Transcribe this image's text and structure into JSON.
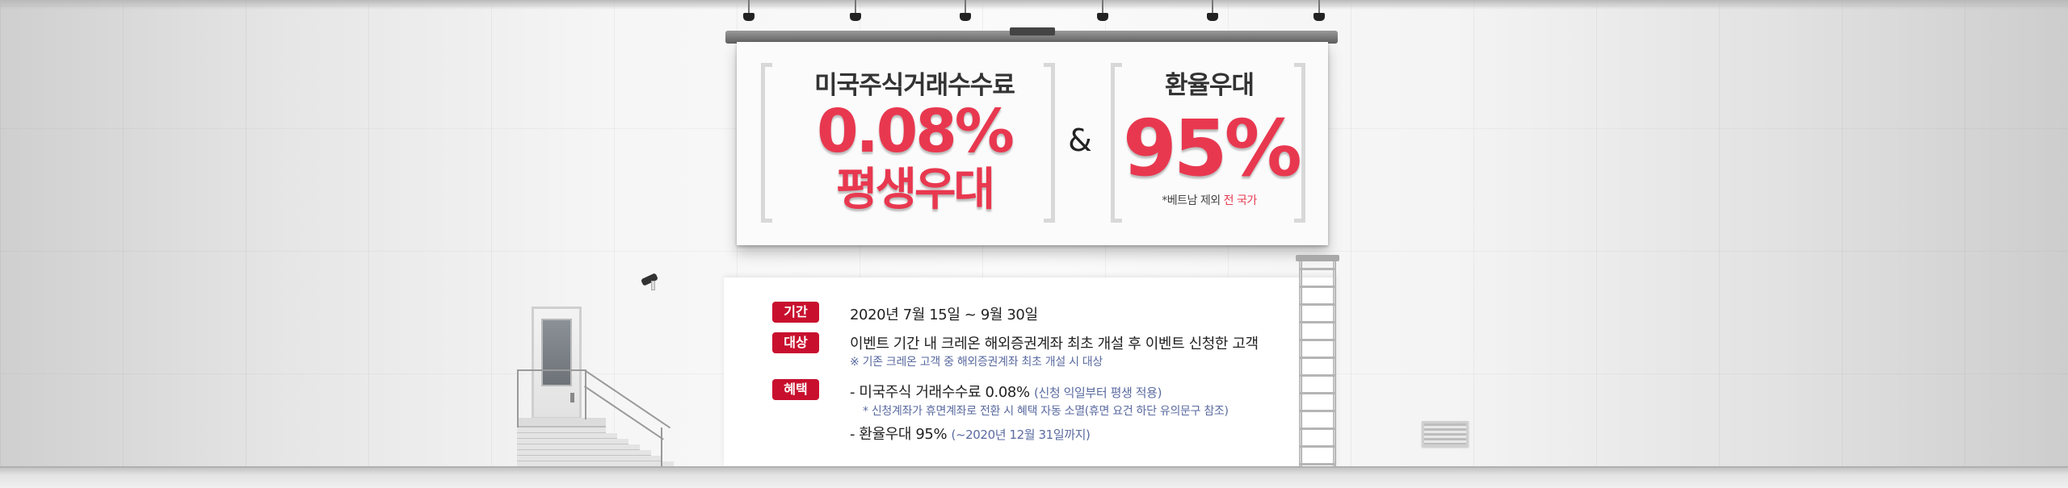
{
  "billboard": {
    "title_left": "미국주식거래수수료",
    "rate": "0.08%",
    "lifetime": "평생우대",
    "ampersand": "&",
    "title_right": "환율우대",
    "fx_rate": "95%",
    "footnote_prefix": "*베트남 제외 ",
    "footnote_highlight": "전 국가"
  },
  "info": {
    "period": {
      "label": "기간",
      "text": "2020년 7월 15일 ~ 9월 30일"
    },
    "target": {
      "label": "대상",
      "text": "이벤트 기간 내 크레온 해외증권계좌 최초 개설 후 이벤트 신청한 고객",
      "note": "※ 기존 크레온 고객 중 해외증권계좌 최초 개설 시 대상"
    },
    "benefit": {
      "label": "혜택",
      "line1_main": "- 미국주식 거래수수료 0.08% ",
      "line1_note": "(신청 익일부터 평생 적용)",
      "line1_sub": "* 신청계좌가 휴면계좌로 전환 시 혜택 자동 소멸(휴면 요건 하단 유의문구 참조)",
      "line2_main": "- 환율우대 95% ",
      "line2_note": "(~2020년 12월 31일까지)"
    }
  },
  "colors": {
    "accent_red": "#e8384f",
    "badge_red": "#c8102e",
    "note_blue": "#5a6aa0"
  }
}
